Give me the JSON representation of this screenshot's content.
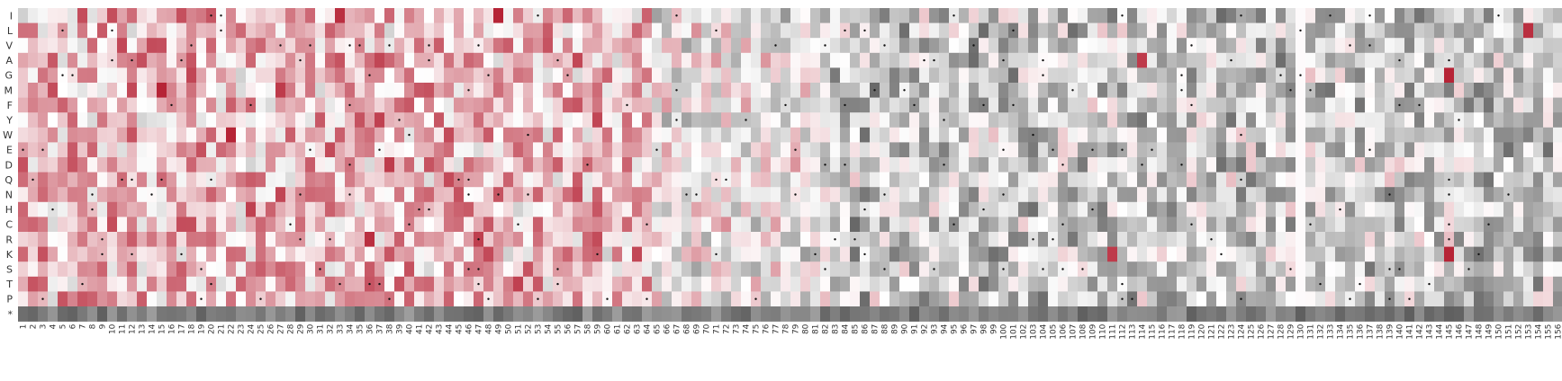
{
  "chart_data": {
    "type": "heatmap",
    "title": "",
    "xlabel": "",
    "ylabel": "",
    "rows": [
      "I",
      "L",
      "V",
      "A",
      "G",
      "M",
      "F",
      "Y",
      "W",
      "E",
      "D",
      "Q",
      "N",
      "H",
      "C",
      "R",
      "K",
      "S",
      "T",
      "P",
      "*"
    ],
    "column_start": 1,
    "column_end": 156,
    "columns": [
      "1",
      "2",
      "3",
      "4",
      "5",
      "6",
      "7",
      "8",
      "9",
      "10",
      "11",
      "12",
      "13",
      "14",
      "15",
      "16",
      "17",
      "18",
      "19",
      "20",
      "21",
      "22",
      "23",
      "24",
      "25",
      "26",
      "27",
      "28",
      "29",
      "30",
      "31",
      "32",
      "33",
      "34",
      "35",
      "36",
      "37",
      "38",
      "39",
      "40",
      "41",
      "42",
      "43",
      "44",
      "45",
      "46",
      "47",
      "48",
      "49",
      "50",
      "51",
      "52",
      "53",
      "54",
      "55",
      "56",
      "57",
      "58",
      "59",
      "60",
      "61",
      "62",
      "63",
      "64",
      "65",
      "66",
      "67",
      "68",
      "69",
      "70",
      "71",
      "72",
      "73",
      "74",
      "75",
      "76",
      "77",
      "78",
      "79",
      "80",
      "81",
      "82",
      "83",
      "84",
      "85",
      "86",
      "87",
      "88",
      "89",
      "90",
      "91",
      "92",
      "93",
      "94",
      "95",
      "96",
      "97",
      "98",
      "99",
      "100",
      "101",
      "102",
      "103",
      "104",
      "105",
      "106",
      "107",
      "108",
      "109",
      "110",
      "111",
      "112",
      "113",
      "114",
      "115",
      "116",
      "117",
      "118",
      "119",
      "120",
      "121",
      "122",
      "123",
      "124",
      "125",
      "126",
      "127",
      "128",
      "129",
      "130",
      "131",
      "132",
      "133",
      "134",
      "135",
      "136",
      "137",
      "138",
      "139",
      "140",
      "141",
      "142",
      "143",
      "144",
      "145",
      "146",
      "147",
      "148",
      "149",
      "150",
      "151",
      "152",
      "153",
      "154",
      "155",
      "156"
    ],
    "value_range": [
      -1,
      1
    ],
    "colormap": {
      "low": "#4d4d4d",
      "mid": "#ffffff",
      "high": "#b2182b"
    },
    "highlight_column": 130,
    "strong_cells": [
      {
        "row": "I",
        "col": 33,
        "value": 0.9
      },
      {
        "row": "I",
        "col": 49,
        "value": 0.95
      },
      {
        "row": "L",
        "col": 153,
        "value": 0.9
      },
      {
        "row": "A",
        "col": 114,
        "value": 0.85
      },
      {
        "row": "G",
        "col": 145,
        "value": 0.95
      },
      {
        "row": "M",
        "col": 15,
        "value": 0.95
      },
      {
        "row": "M",
        "col": 27,
        "value": 0.85
      },
      {
        "row": "Y",
        "col": 59,
        "value": 0.8
      },
      {
        "row": "W",
        "col": 22,
        "value": 0.95
      },
      {
        "row": "R",
        "col": 36,
        "value": 0.9
      },
      {
        "row": "K",
        "col": 145,
        "value": 0.95
      },
      {
        "row": "K",
        "col": 111,
        "value": 0.85
      }
    ],
    "grid": false,
    "legend": "none"
  }
}
